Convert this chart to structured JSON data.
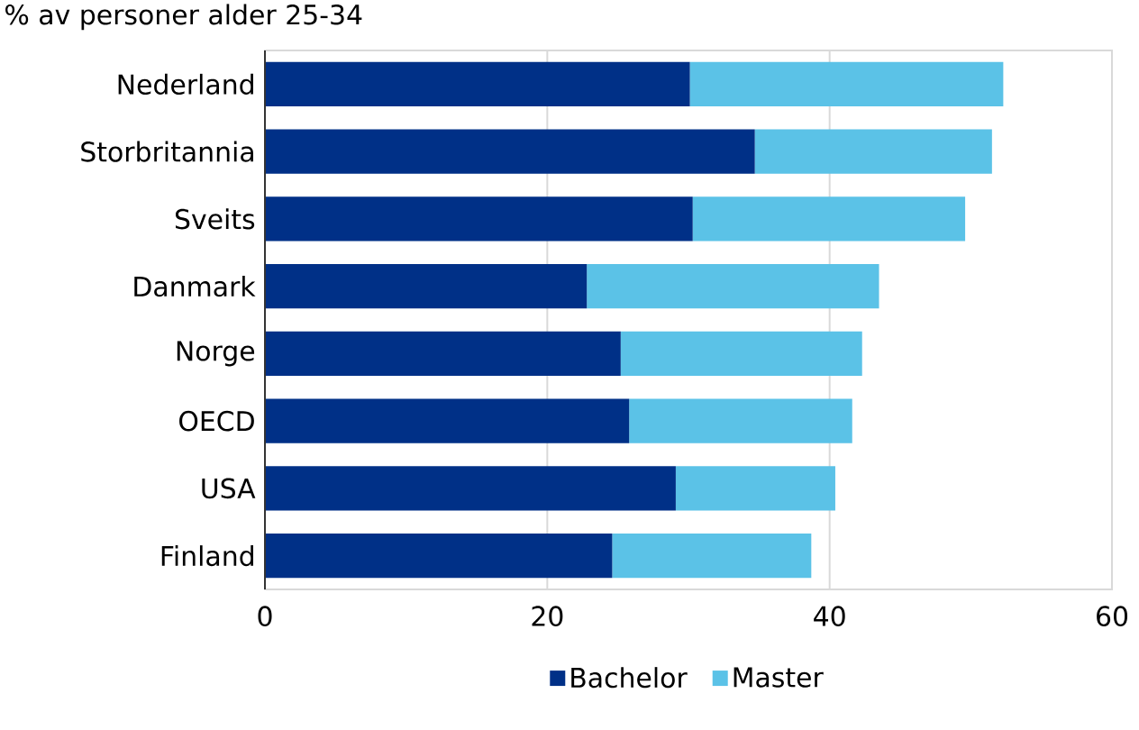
{
  "chart_data": {
    "type": "bar",
    "orientation": "horizontal",
    "stacked": true,
    "title": "% av personer alder 25-34",
    "categories": [
      "Nederland",
      "Storbritannia",
      "Sveits",
      "Danmark",
      "Norge",
      "OECD",
      "USA",
      "Finland"
    ],
    "series": [
      {
        "name": "Bachelor",
        "color": "#003087",
        "values": [
          30.1,
          34.7,
          30.3,
          22.8,
          25.2,
          25.8,
          29.1,
          24.6
        ]
      },
      {
        "name": "Master",
        "color": "#5bc2e7",
        "values": [
          22.2,
          16.8,
          19.3,
          20.7,
          17.1,
          15.8,
          11.3,
          14.1
        ]
      }
    ],
    "xlim": [
      0,
      60
    ],
    "xticks": [
      0,
      20,
      40,
      60
    ],
    "grid": "x",
    "legend": "bottom"
  }
}
